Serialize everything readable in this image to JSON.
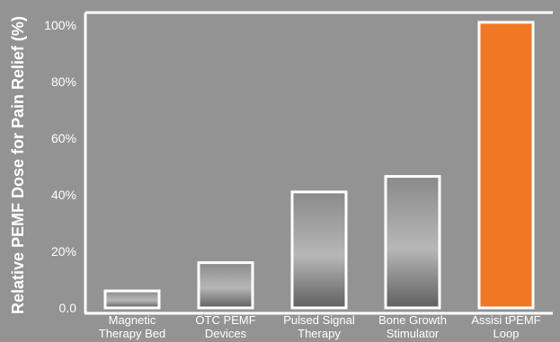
{
  "chart_data": {
    "type": "bar",
    "ylabel": "Relative PEMF Dose for Pain Relief (%)",
    "xlabel": "",
    "ylim": [
      0,
      100
    ],
    "yticks": [
      0,
      20,
      40,
      60,
      80,
      100
    ],
    "ytick_labels": [
      "0.0",
      "20%",
      "40%",
      "60%",
      "80%",
      "100%"
    ],
    "categories": [
      [
        "Magnetic",
        "Therapy Bed"
      ],
      [
        "OTC PEMF",
        "Devices"
      ],
      [
        "Pulsed Signal",
        "Therapy"
      ],
      [
        "Bone Growth",
        "Stimulator"
      ],
      [
        "Assisi tPEMF",
        "Loop"
      ]
    ],
    "values": [
      6,
      16,
      41,
      46.5,
      101
    ],
    "highlight_index": 4,
    "colors": {
      "background": "#939393",
      "bar_outline": "#ffffff",
      "highlight": "#f07723",
      "axis": "#ffffff"
    },
    "grid": false
  }
}
